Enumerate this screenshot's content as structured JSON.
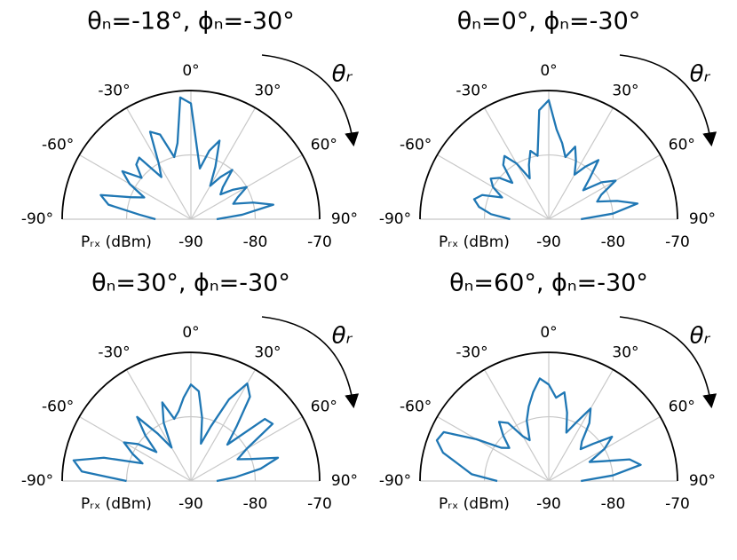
{
  "chart_data": [
    {
      "type": "polar",
      "title": "θₙ=-18°, ϕₙ=-30°",
      "annotation": "θᵣ",
      "r_label": "Pᵣₓ (dBm)",
      "color": "#1f77b4",
      "xlim": [
        -90,
        90
      ],
      "rlim": [
        -90,
        -70
      ],
      "rticks": [
        -90,
        -80,
        -70
      ],
      "xticks": [
        {
          "value": -90,
          "label": "-90°"
        },
        {
          "value": -60,
          "label": "-60°"
        },
        {
          "value": -30,
          "label": "-30°"
        },
        {
          "value": 0,
          "label": "0°"
        },
        {
          "value": 30,
          "label": "30°"
        },
        {
          "value": 60,
          "label": "60°"
        },
        {
          "value": 90,
          "label": "90°"
        }
      ],
      "x": [
        -90,
        -85,
        -80,
        -75,
        -70,
        -65,
        -60,
        -55,
        -50,
        -45,
        -40,
        -35,
        -30,
        -25,
        -20,
        -15,
        -10,
        -5,
        0,
        5,
        10,
        15,
        20,
        25,
        30,
        35,
        40,
        45,
        50,
        55,
        60,
        65,
        70,
        75,
        80,
        85,
        90
      ],
      "values": [
        -84.5,
        -82,
        -77,
        -75.5,
        -80,
        -82,
        -79,
        -77,
        -80,
        -78,
        -77.5,
        -82,
        -80,
        -75,
        -76,
        -80,
        -78,
        -71,
        -72,
        -79,
        -82,
        -79,
        -77,
        -81,
        -84,
        -82,
        -80,
        -83,
        -84,
        -82,
        -80,
        -82,
        -83,
        -80,
        -77,
        -82,
        -86
      ]
    },
    {
      "type": "polar",
      "title": "θₙ=0°, ϕₙ=-30°",
      "annotation": "θᵣ",
      "r_label": "Pᵣₓ (dBm)",
      "color": "#1f77b4",
      "xlim": [
        -90,
        90
      ],
      "rlim": [
        -90,
        -70
      ],
      "rticks": [
        -90,
        -80,
        -70
      ],
      "xticks": [
        {
          "value": -90,
          "label": "-90°"
        },
        {
          "value": -60,
          "label": "-60°"
        },
        {
          "value": -30,
          "label": "-30°"
        },
        {
          "value": 0,
          "label": "0°"
        },
        {
          "value": 30,
          "label": "30°"
        },
        {
          "value": 60,
          "label": "60°"
        },
        {
          "value": 90,
          "label": "90°"
        }
      ],
      "x": [
        -90,
        -85,
        -80,
        -75,
        -70,
        -65,
        -60,
        -55,
        -50,
        -45,
        -40,
        -35,
        -30,
        -25,
        -20,
        -15,
        -10,
        -5,
        0,
        5,
        10,
        15,
        20,
        25,
        30,
        35,
        40,
        45,
        50,
        55,
        60,
        65,
        70,
        75,
        80,
        85,
        90
      ],
      "values": [
        -84,
        -81,
        -79,
        -78,
        -79,
        -82,
        -80,
        -79,
        -80,
        -82,
        -79,
        -78,
        -80,
        -83,
        -81,
        -79,
        -80,
        -73,
        -71.5,
        -76,
        -78,
        -80,
        -78,
        -80,
        -82,
        -80,
        -78,
        -81,
        -83,
        -80,
        -78,
        -81,
        -82,
        -79,
        -76,
        -80,
        -85
      ]
    },
    {
      "type": "polar",
      "title": "θₙ=30°, ϕₙ=-30°",
      "annotation": "θᵣ",
      "r_label": "Pᵣₓ (dBm)",
      "color": "#1f77b4",
      "xlim": [
        -90,
        90
      ],
      "rlim": [
        -90,
        -70
      ],
      "rticks": [
        -90,
        -80,
        -70
      ],
      "xticks": [
        {
          "value": -90,
          "label": "-90°"
        },
        {
          "value": -60,
          "label": "-60°"
        },
        {
          "value": -30,
          "label": "-30°"
        },
        {
          "value": 0,
          "label": "0°"
        },
        {
          "value": 30,
          "label": "30°"
        },
        {
          "value": 60,
          "label": "60°"
        },
        {
          "value": 90,
          "label": "90°"
        }
      ],
      "x": [
        -90,
        -85,
        -80,
        -75,
        -70,
        -65,
        -60,
        -55,
        -50,
        -45,
        -40,
        -35,
        -30,
        -25,
        -20,
        -15,
        -10,
        -5,
        0,
        5,
        10,
        15,
        20,
        25,
        30,
        35,
        40,
        45,
        50,
        55,
        60,
        65,
        70,
        75,
        80,
        85,
        90
      ],
      "values": [
        -80,
        -73,
        -71.5,
        -76,
        -82,
        -80,
        -78,
        -80,
        -83,
        -80,
        -77,
        -81,
        -84,
        -80,
        -77,
        -80,
        -79,
        -77,
        -75,
        -76,
        -80,
        -84,
        -81,
        -76,
        -72.5,
        -74,
        -79,
        -82,
        -75,
        -74.5,
        -80,
        -82,
        -80,
        -76,
        -79,
        -83,
        -86
      ]
    },
    {
      "type": "polar",
      "title": "θₙ=60°, ϕₙ=-30°",
      "annotation": "θᵣ",
      "r_label": "Pᵣₓ (dBm)",
      "color": "#1f77b4",
      "xlim": [
        -90,
        90
      ],
      "rlim": [
        -90,
        -70
      ],
      "rticks": [
        -90,
        -80,
        -70
      ],
      "xticks": [
        {
          "value": -90,
          "label": "-90°"
        },
        {
          "value": -60,
          "label": "-60°"
        },
        {
          "value": -30,
          "label": "-30°"
        },
        {
          "value": 0,
          "label": "0°"
        },
        {
          "value": 30,
          "label": "30°"
        },
        {
          "value": 60,
          "label": "60°"
        },
        {
          "value": 90,
          "label": "90°"
        }
      ],
      "x": [
        -90,
        -85,
        -80,
        -75,
        -70,
        -65,
        -60,
        -55,
        -50,
        -45,
        -40,
        -35,
        -30,
        -25,
        -20,
        -15,
        -10,
        -5,
        0,
        5,
        10,
        15,
        20,
        25,
        30,
        35,
        40,
        45,
        50,
        55,
        60,
        65,
        70,
        75,
        80,
        85,
        90
      ],
      "values": [
        -82,
        -78,
        -76,
        -73,
        -71.5,
        -72,
        -77,
        -81,
        -82,
        -80,
        -78,
        -79,
        -82,
        -83,
        -80,
        -78,
        -76,
        -74,
        -75,
        -77,
        -76,
        -79,
        -82,
        -80,
        -77,
        -79,
        -82,
        -83,
        -81,
        -78,
        -80,
        -83,
        -81,
        -77,
        -75.5,
        -80,
        -85
      ]
    }
  ]
}
